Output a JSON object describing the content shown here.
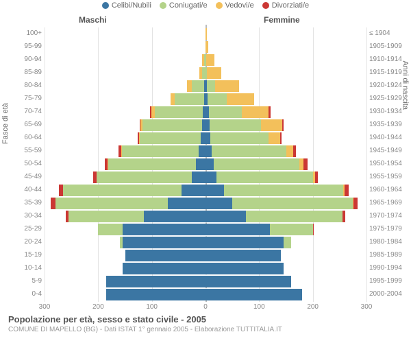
{
  "legend": [
    {
      "label": "Celibi/Nubili",
      "color": "#3b76a3"
    },
    {
      "label": "Coniugati/e",
      "color": "#b4d38a"
    },
    {
      "label": "Vedovi/e",
      "color": "#f3c05b"
    },
    {
      "label": "Divorziati/e",
      "color": "#cb3734"
    }
  ],
  "header": {
    "male": "Maschi",
    "female": "Femmine"
  },
  "axis_left_title": "Fasce di età",
  "axis_right_title": "Anni di nascita",
  "x_axis": {
    "max": 300,
    "ticks": [
      300,
      200,
      100,
      0,
      100,
      200,
      300
    ]
  },
  "footer": {
    "title": "Popolazione per età, sesso e stato civile - 2005",
    "subtitle": "COMUNE DI MAPELLO (BG) - Dati ISTAT 1° gennaio 2005 - Elaborazione TUTTITALIA.IT"
  },
  "colors": {
    "single": "#3b76a3",
    "married": "#b4d38a",
    "widowed": "#f3c05b",
    "divorced": "#cb3734",
    "grid": "#e3e3e3",
    "centerline": "#bbb"
  },
  "rows": [
    {
      "age": "100+",
      "birth": "≤ 1904",
      "m": [
        0,
        0,
        0,
        0
      ],
      "f": [
        0,
        0,
        2,
        0
      ]
    },
    {
      "age": "95-99",
      "birth": "1905-1909",
      "m": [
        0,
        0,
        0,
        0
      ],
      "f": [
        0,
        0,
        5,
        0
      ]
    },
    {
      "age": "90-94",
      "birth": "1910-1914",
      "m": [
        0,
        2,
        4,
        0
      ],
      "f": [
        0,
        1,
        15,
        0
      ]
    },
    {
      "age": "85-89",
      "birth": "1915-1919",
      "m": [
        0,
        6,
        6,
        0
      ],
      "f": [
        0,
        3,
        27,
        0
      ]
    },
    {
      "age": "80-84",
      "birth": "1920-1924",
      "m": [
        2,
        23,
        9,
        0
      ],
      "f": [
        3,
        15,
        45,
        0
      ]
    },
    {
      "age": "75-79",
      "birth": "1925-1929",
      "m": [
        3,
        55,
        7,
        0
      ],
      "f": [
        4,
        35,
        52,
        0
      ]
    },
    {
      "age": "70-74",
      "birth": "1930-1934",
      "m": [
        5,
        90,
        6,
        3
      ],
      "f": [
        6,
        62,
        50,
        3
      ]
    },
    {
      "age": "65-69",
      "birth": "1935-1939",
      "m": [
        7,
        110,
        4,
        2
      ],
      "f": [
        8,
        95,
        40,
        3
      ]
    },
    {
      "age": "60-64",
      "birth": "1940-1944",
      "m": [
        9,
        113,
        2,
        2
      ],
      "f": [
        9,
        108,
        22,
        3
      ]
    },
    {
      "age": "55-59",
      "birth": "1945-1949",
      "m": [
        13,
        143,
        1,
        5
      ],
      "f": [
        11,
        140,
        12,
        6
      ]
    },
    {
      "age": "50-54",
      "birth": "1950-1954",
      "m": [
        18,
        163,
        1,
        6
      ],
      "f": [
        15,
        160,
        8,
        7
      ]
    },
    {
      "age": "45-49",
      "birth": "1955-1959",
      "m": [
        25,
        178,
        0,
        6
      ],
      "f": [
        20,
        180,
        4,
        6
      ]
    },
    {
      "age": "40-44",
      "birth": "1960-1964",
      "m": [
        45,
        220,
        0,
        8
      ],
      "f": [
        35,
        222,
        2,
        8
      ]
    },
    {
      "age": "35-39",
      "birth": "1965-1969",
      "m": [
        70,
        210,
        0,
        8
      ],
      "f": [
        50,
        225,
        1,
        8
      ]
    },
    {
      "age": "30-34",
      "birth": "1970-1974",
      "m": [
        115,
        140,
        0,
        5
      ],
      "f": [
        75,
        180,
        0,
        5
      ]
    },
    {
      "age": "25-29",
      "birth": "1975-1979",
      "m": [
        155,
        45,
        0,
        1
      ],
      "f": [
        120,
        80,
        0,
        1
      ]
    },
    {
      "age": "20-24",
      "birth": "1980-1984",
      "m": [
        155,
        5,
        0,
        0
      ],
      "f": [
        145,
        15,
        0,
        0
      ]
    },
    {
      "age": "15-19",
      "birth": "1985-1989",
      "m": [
        150,
        0,
        0,
        0
      ],
      "f": [
        140,
        0,
        0,
        0
      ]
    },
    {
      "age": "10-14",
      "birth": "1990-1994",
      "m": [
        155,
        0,
        0,
        0
      ],
      "f": [
        145,
        0,
        0,
        0
      ]
    },
    {
      "age": "5-9",
      "birth": "1995-1999",
      "m": [
        185,
        0,
        0,
        0
      ],
      "f": [
        160,
        0,
        0,
        0
      ]
    },
    {
      "age": "0-4",
      "birth": "2000-2004",
      "m": [
        185,
        0,
        0,
        0
      ],
      "f": [
        180,
        0,
        0,
        0
      ]
    }
  ]
}
